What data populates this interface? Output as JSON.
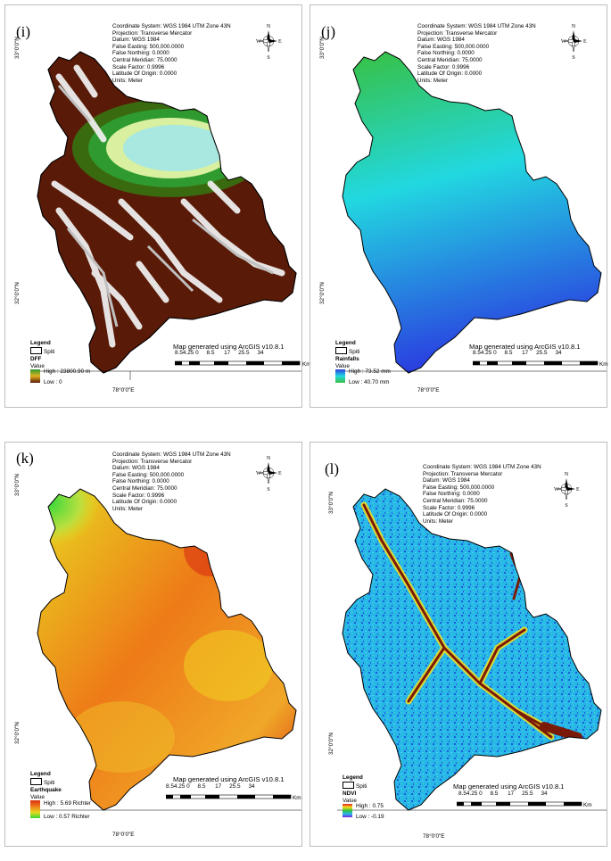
{
  "projection_lines": [
    "Coordinate System: WGS 1984 UTM Zone 43N",
    "Projection: Transverse Mercator",
    "Datum: WGS 1984",
    "False Easting: 500,000.0000",
    "False Northing: 0.0000",
    "Central Meridian: 75.0000",
    "Scale Factor: 0.9996",
    "Latitude Of Origin: 0.0000",
    "Units: Meter"
  ],
  "compass": {
    "n": "N",
    "s": "S",
    "e": "E",
    "w": "W"
  },
  "lat_top": "33°0'0\"N",
  "lat_bottom": "32°0'0\"N",
  "lon_label": "78°0'0\"E",
  "legend_title": "Legend",
  "study_area": "Spiti",
  "value_label": "Value",
  "generated_by": "Map generated using ArcGIS v10.8.1",
  "scale_ticks": [
    "8.54.25 0",
    "8.5",
    "17",
    "25.5",
    "34"
  ],
  "scale_unit": "Km",
  "panels": [
    {
      "letter": "(i)",
      "layer": "DFF",
      "high": "High : 23800.90 m",
      "low": "Low : 0",
      "colors": {
        "high": "#2f9a2f",
        "mid": "#e0b020",
        "low": "#5a1a08",
        "fill": "#d6d6d6",
        "center": "#a8e8e0"
      }
    },
    {
      "letter": "(j)",
      "layer": "Rainfalls",
      "high": "High : 73.52 mm",
      "low": "Low : 40.70 mm",
      "colors": {
        "top": "#38c040",
        "mid": "#22d8e0",
        "bottom": "#2a40e0"
      }
    },
    {
      "letter": "(k)",
      "layer": "Earthquake",
      "high": "High : 5.69 Richter",
      "low": "Low : 0.57 Richter",
      "colors": {
        "green": "#3ad83a",
        "yellow": "#e8d820",
        "orange": "#ee7a18",
        "red": "#d83010"
      }
    },
    {
      "letter": "(l)",
      "layer": "NDVI",
      "high": "High : 0.75",
      "low": "Low : -0.19",
      "colors": {
        "base": "#27b8e8",
        "dark": "#1f5cd8",
        "river": "#7a1a08",
        "yellow": "#f2e020"
      }
    }
  ]
}
